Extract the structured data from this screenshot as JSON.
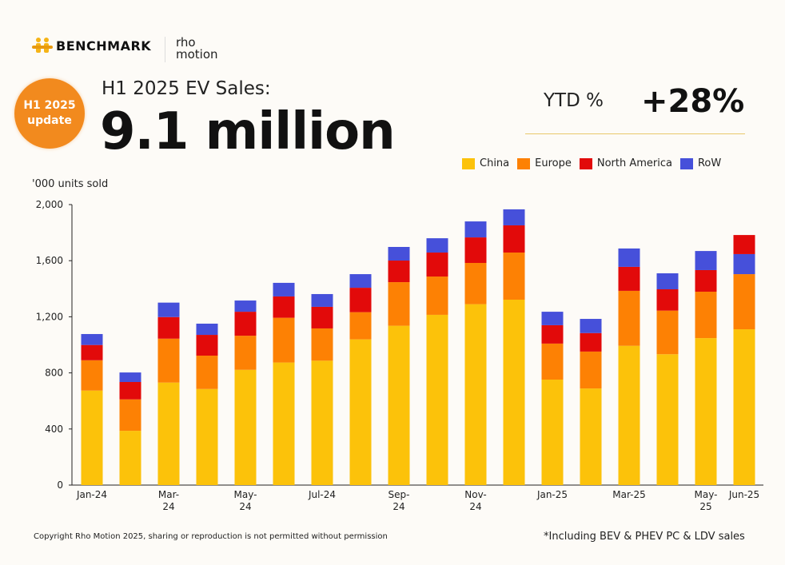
{
  "brand": {
    "logo_text": "BENCHMARK",
    "partner_logo_line1": "rho",
    "partner_logo_line2": "motion"
  },
  "badge": {
    "line1": "H1 2025",
    "line2": "update"
  },
  "header": {
    "subtitle": "H1 2025 EV Sales:",
    "headline": "9.1 million",
    "ytd_label": "YTD %",
    "ytd_value": "+28%"
  },
  "footer": {
    "copyright": "Copyright Rho Motion 2025, sharing or reproduction is not permitted without permission",
    "note": "*Including BEV & PHEV PC & LDV sales"
  },
  "chart_data": {
    "type": "bar",
    "stacked": true,
    "ylabel": "'000 units sold",
    "ylim": [
      0,
      2000
    ],
    "yticks": [
      "0",
      "400",
      "800",
      "1,200",
      "1,600",
      "2,000"
    ],
    "ytick_values": [
      0,
      400,
      800,
      1200,
      1600,
      2000
    ],
    "grid": false,
    "legend_position": "top-right",
    "categories": [
      "Jan-24",
      "Feb-24",
      "Mar-24",
      "Apr-24",
      "May-24",
      "Jun-24",
      "Jul-24",
      "Aug-24",
      "Sep-24",
      "Oct-24",
      "Nov-24",
      "Dec-24",
      "Jan-25",
      "Feb-25",
      "Mar-25",
      "Apr-25",
      "May-25",
      "Jun-25"
    ],
    "xtick_labels": [
      {
        "index": 0,
        "label": "Jan-24"
      },
      {
        "index": 2,
        "label": "Mar-\n24"
      },
      {
        "index": 4,
        "label": "May-\n24"
      },
      {
        "index": 6,
        "label": "Jul-24"
      },
      {
        "index": 8,
        "label": "Sep-\n24"
      },
      {
        "index": 10,
        "label": "Nov-\n24"
      },
      {
        "index": 12,
        "label": "Jan-25"
      },
      {
        "index": 14,
        "label": "Mar-25"
      },
      {
        "index": 16,
        "label": "May-\n25"
      },
      {
        "index": 17,
        "label": "Jun-25"
      }
    ],
    "series": [
      {
        "name": "China",
        "color": "#FCC20A",
        "values": [
          674,
          387,
          731,
          685,
          822,
          874,
          887,
          1039,
          1136,
          1214,
          1290,
          1322,
          752,
          689,
          993,
          933,
          1048,
          1111
        ]
      },
      {
        "name": "Europe",
        "color": "#FD8104",
        "values": [
          216,
          224,
          313,
          238,
          243,
          319,
          230,
          194,
          311,
          273,
          294,
          336,
          257,
          263,
          392,
          311,
          331,
          393
        ]
      },
      {
        "name": "North America",
        "color": "#E20A0A",
        "values": [
          109,
          124,
          154,
          148,
          171,
          152,
          154,
          174,
          154,
          171,
          182,
          194,
          131,
          132,
          171,
          152,
          154,
          136
        ]
      },
      {
        "name": "RoW",
        "color": "#4650DA",
        "values": [
          78,
          68,
          103,
          80,
          80,
          97,
          91,
          97,
          97,
          102,
          114,
          114,
          96,
          101,
          131,
          114,
          136,
          143
        ]
      }
    ],
    "stack_order_override": {
      "Jun-25": [
        "China",
        "Europe",
        "RoW",
        "North America"
      ]
    }
  }
}
